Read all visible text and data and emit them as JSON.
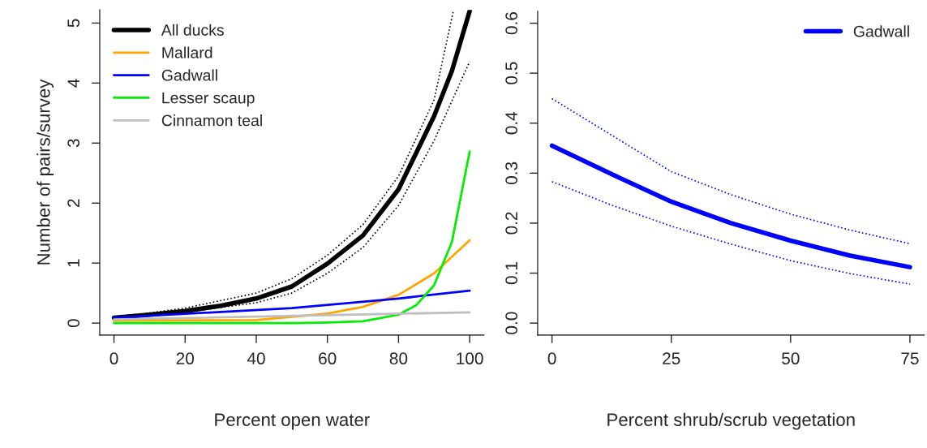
{
  "chart_data": [
    {
      "type": "line",
      "xlabel": "Percent open water",
      "ylabel": "Number of pairs/survey",
      "xlim": [
        -4,
        104
      ],
      "ylim": [
        -0.2,
        5.22
      ],
      "xticks": [
        0,
        20,
        40,
        60,
        80,
        100
      ],
      "yticks": [
        0,
        1,
        2,
        3,
        4,
        5
      ],
      "legend": "top left",
      "grid": false,
      "series": [
        {
          "name": "All ducks",
          "color": "#000000",
          "x": [
            0,
            10,
            20,
            30,
            40,
            50,
            60,
            70,
            80,
            90,
            95,
            100
          ],
          "values": [
            0.09,
            0.14,
            0.2,
            0.29,
            0.41,
            0.61,
            0.99,
            1.46,
            2.23,
            3.45,
            4.2,
            5.2
          ]
        },
        {
          "color": "#000000",
          "line_style": "dotted",
          "x": [
            0,
            20,
            40,
            50,
            60,
            70,
            80,
            90,
            95.4
          ],
          "values": [
            0.09,
            0.25,
            0.5,
            0.74,
            1.13,
            1.64,
            2.45,
            3.72,
            5.2
          ]
        },
        {
          "color": "#000000",
          "line_style": "dotted",
          "x": [
            0,
            20,
            40,
            50,
            60,
            70,
            80,
            90,
            100
          ],
          "values": [
            0.09,
            0.18,
            0.34,
            0.5,
            0.83,
            1.26,
            1.96,
            3.04,
            4.36
          ]
        },
        {
          "name": "Mallard",
          "color": "#ffa500",
          "x": [
            0,
            40,
            60,
            70,
            80,
            90,
            100
          ],
          "values": [
            0.04,
            0.05,
            0.16,
            0.27,
            0.47,
            0.83,
            1.38
          ]
        },
        {
          "name": "Gadwall",
          "color": "#0000ff",
          "x": [
            0,
            50,
            80,
            100
          ],
          "values": [
            0.09,
            0.25,
            0.41,
            0.54
          ]
        },
        {
          "name": "Lesser scaup",
          "color": "#00ee00",
          "x": [
            0,
            50,
            60,
            70,
            80,
            85,
            90,
            95,
            100
          ],
          "values": [
            0.0,
            0.0,
            0.01,
            0.03,
            0.14,
            0.3,
            0.63,
            1.35,
            2.86
          ]
        },
        {
          "name": "Cinnamon teal",
          "color": "#bebebe",
          "x": [
            0,
            100
          ],
          "values": [
            0.06,
            0.18
          ]
        }
      ]
    },
    {
      "type": "line",
      "xlabel": "Percent shrub/scrub vegetation",
      "xlim": [
        -3,
        78
      ],
      "ylim": [
        -0.024,
        0.624
      ],
      "xticks": [
        0,
        25,
        50,
        75
      ],
      "yticks": [
        {
          "value": 0,
          "label": "0.0"
        },
        0.1,
        0.2,
        0.3,
        0.4,
        0.5,
        0.6
      ],
      "legend": "top right",
      "grid": false,
      "series": [
        {
          "name": "Gadwall",
          "color": "#0000ff",
          "x": [
            0,
            12.5,
            25,
            37.5,
            50,
            62.5,
            75
          ],
          "values": [
            0.355,
            0.298,
            0.243,
            0.2,
            0.165,
            0.135,
            0.112
          ]
        },
        {
          "color": "#0000ff",
          "line_style": "dotted",
          "x": [
            0,
            12.5,
            25,
            37.5,
            50,
            62.5,
            75
          ],
          "values": [
            0.449,
            0.376,
            0.303,
            0.257,
            0.218,
            0.186,
            0.159
          ]
        },
        {
          "color": "#0000ff",
          "line_style": "dotted",
          "x": [
            0,
            12.5,
            25,
            37.5,
            50,
            62.5,
            75
          ],
          "values": [
            0.283,
            0.236,
            0.194,
            0.158,
            0.125,
            0.099,
            0.078
          ]
        }
      ]
    }
  ]
}
